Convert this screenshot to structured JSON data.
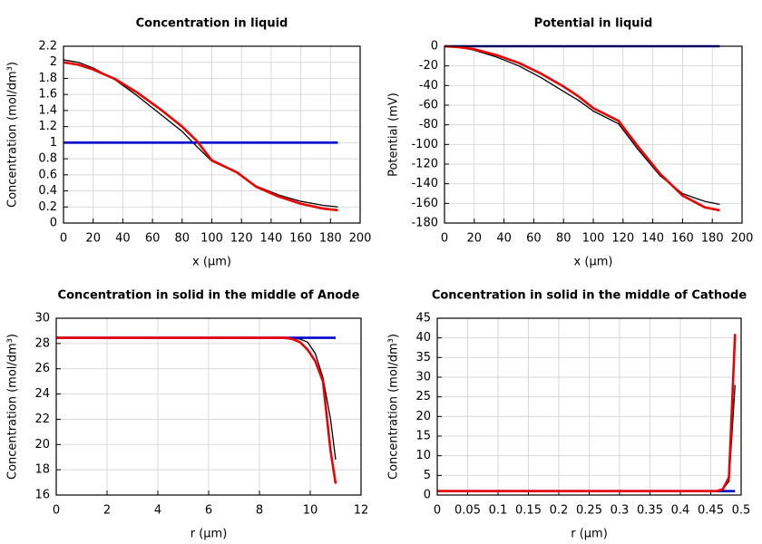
{
  "chart_data": [
    {
      "type": "line",
      "title": "Concentration in liquid",
      "x_label": "x (µm)",
      "y_label": "Concentration (mol/dm³)",
      "x": [
        0,
        10,
        20,
        35,
        50,
        65,
        80,
        90,
        100,
        117,
        130,
        145,
        160,
        175,
        185
      ],
      "series": [
        {
          "color": "#000000",
          "values": [
            2.03,
            2.0,
            1.93,
            1.78,
            1.58,
            1.36,
            1.14,
            0.95,
            0.77,
            0.63,
            0.46,
            0.35,
            0.27,
            0.22,
            0.2
          ]
        },
        {
          "color": "#0000cc",
          "values": [
            1,
            1,
            1,
            1,
            1,
            1,
            1,
            1,
            1,
            1,
            1,
            1,
            1,
            1,
            1
          ]
        },
        {
          "color": "#ee0000",
          "values": [
            2.0,
            1.97,
            1.91,
            1.79,
            1.62,
            1.42,
            1.2,
            1.02,
            0.78,
            0.63,
            0.45,
            0.33,
            0.24,
            0.18,
            0.16
          ]
        }
      ],
      "xlim": [
        0,
        200
      ],
      "xticks": [
        0,
        20,
        40,
        60,
        80,
        100,
        120,
        140,
        160,
        180,
        200
      ],
      "ylim": [
        0,
        2.2
      ],
      "yticks": [
        0,
        0.2,
        0.4,
        0.6,
        0.8,
        1,
        1.2,
        1.4,
        1.6,
        1.8,
        2,
        2.2
      ],
      "grid": true
    },
    {
      "type": "line",
      "title": "Potential in liquid",
      "x_label": "x (µm)",
      "y_label": "Potential (mV)",
      "x": [
        0,
        10,
        20,
        35,
        50,
        65,
        80,
        90,
        100,
        117,
        130,
        145,
        160,
        175,
        185
      ],
      "series": [
        {
          "color": "#000000",
          "values": [
            0,
            -1,
            -4,
            -11,
            -20,
            -32,
            -46,
            -55,
            -66,
            -79,
            -105,
            -132,
            -150,
            -158,
            -161
          ]
        },
        {
          "color": "#0000cc",
          "values": [
            0,
            0,
            0,
            0,
            0,
            0,
            0,
            0,
            0,
            0,
            0,
            0,
            0,
            0,
            0
          ]
        },
        {
          "color": "#ee0000",
          "values": [
            0,
            -1,
            -3,
            -9,
            -17,
            -28,
            -41,
            -51,
            -63,
            -76,
            -102,
            -130,
            -152,
            -164,
            -167
          ]
        }
      ],
      "xlim": [
        0,
        200
      ],
      "xticks": [
        0,
        20,
        40,
        60,
        80,
        100,
        120,
        140,
        160,
        180,
        200
      ],
      "ylim": [
        -180,
        0
      ],
      "yticks": [
        0,
        -20,
        -40,
        -60,
        -80,
        -100,
        -120,
        -140,
        -160,
        -180
      ],
      "grid": true
    },
    {
      "type": "line",
      "title": "Concentration in solid in the middle of Anode",
      "x_label": "r (µm)",
      "y_label": "Concentration (mol/dm³)",
      "x": [
        0,
        2,
        4,
        6,
        8,
        8.5,
        9,
        9.3,
        9.6,
        9.9,
        10.2,
        10.5,
        10.8,
        11
      ],
      "series": [
        {
          "color": "#000000",
          "values": [
            28.45,
            28.45,
            28.45,
            28.45,
            28.45,
            28.45,
            28.45,
            28.42,
            28.35,
            28.1,
            27.2,
            25.3,
            22,
            18.8
          ]
        },
        {
          "color": "#0000cc",
          "values": [
            28.45,
            28.45,
            28.45,
            28.45,
            28.45,
            28.45,
            28.45,
            28.45,
            28.45,
            28.45,
            28.45,
            28.45,
            28.45,
            28.45
          ]
        },
        {
          "color": "#ee0000",
          "values": [
            28.45,
            28.45,
            28.45,
            28.45,
            28.45,
            28.45,
            28.45,
            28.35,
            28.1,
            27.5,
            26.6,
            25,
            19.5,
            16.9
          ]
        }
      ],
      "xlim": [
        0,
        12
      ],
      "xticks": [
        0,
        2,
        4,
        6,
        8,
        10,
        12
      ],
      "ylim": [
        16,
        30
      ],
      "yticks": [
        16,
        18,
        20,
        22,
        24,
        26,
        28,
        30
      ],
      "grid": true
    },
    {
      "type": "line",
      "title": "Concentration in solid in the middle of Cathode",
      "x_label": "r (µm)",
      "y_label": "Concentration (mol/dm³)",
      "x": [
        0,
        0.1,
        0.2,
        0.3,
        0.4,
        0.46,
        0.47,
        0.48,
        0.49
      ],
      "series": [
        {
          "color": "#000000",
          "values": [
            1,
            1,
            1,
            1,
            1,
            1,
            1.5,
            3.5,
            28
          ]
        },
        {
          "color": "#0000cc",
          "values": [
            1,
            1,
            1,
            1,
            1,
            1,
            1,
            1,
            1
          ]
        },
        {
          "color": "#ee0000",
          "values": [
            1,
            1,
            1,
            1,
            1,
            1,
            1.5,
            4.5,
            41
          ]
        }
      ],
      "xlim": [
        0,
        0.5
      ],
      "xticks": [
        0,
        0.05,
        0.1,
        0.15,
        0.2,
        0.25,
        0.3,
        0.35,
        0.4,
        0.45,
        0.5
      ],
      "ylim": [
        0,
        45
      ],
      "yticks": [
        0,
        5,
        10,
        15,
        20,
        25,
        30,
        35,
        40,
        45
      ],
      "grid": true
    }
  ]
}
